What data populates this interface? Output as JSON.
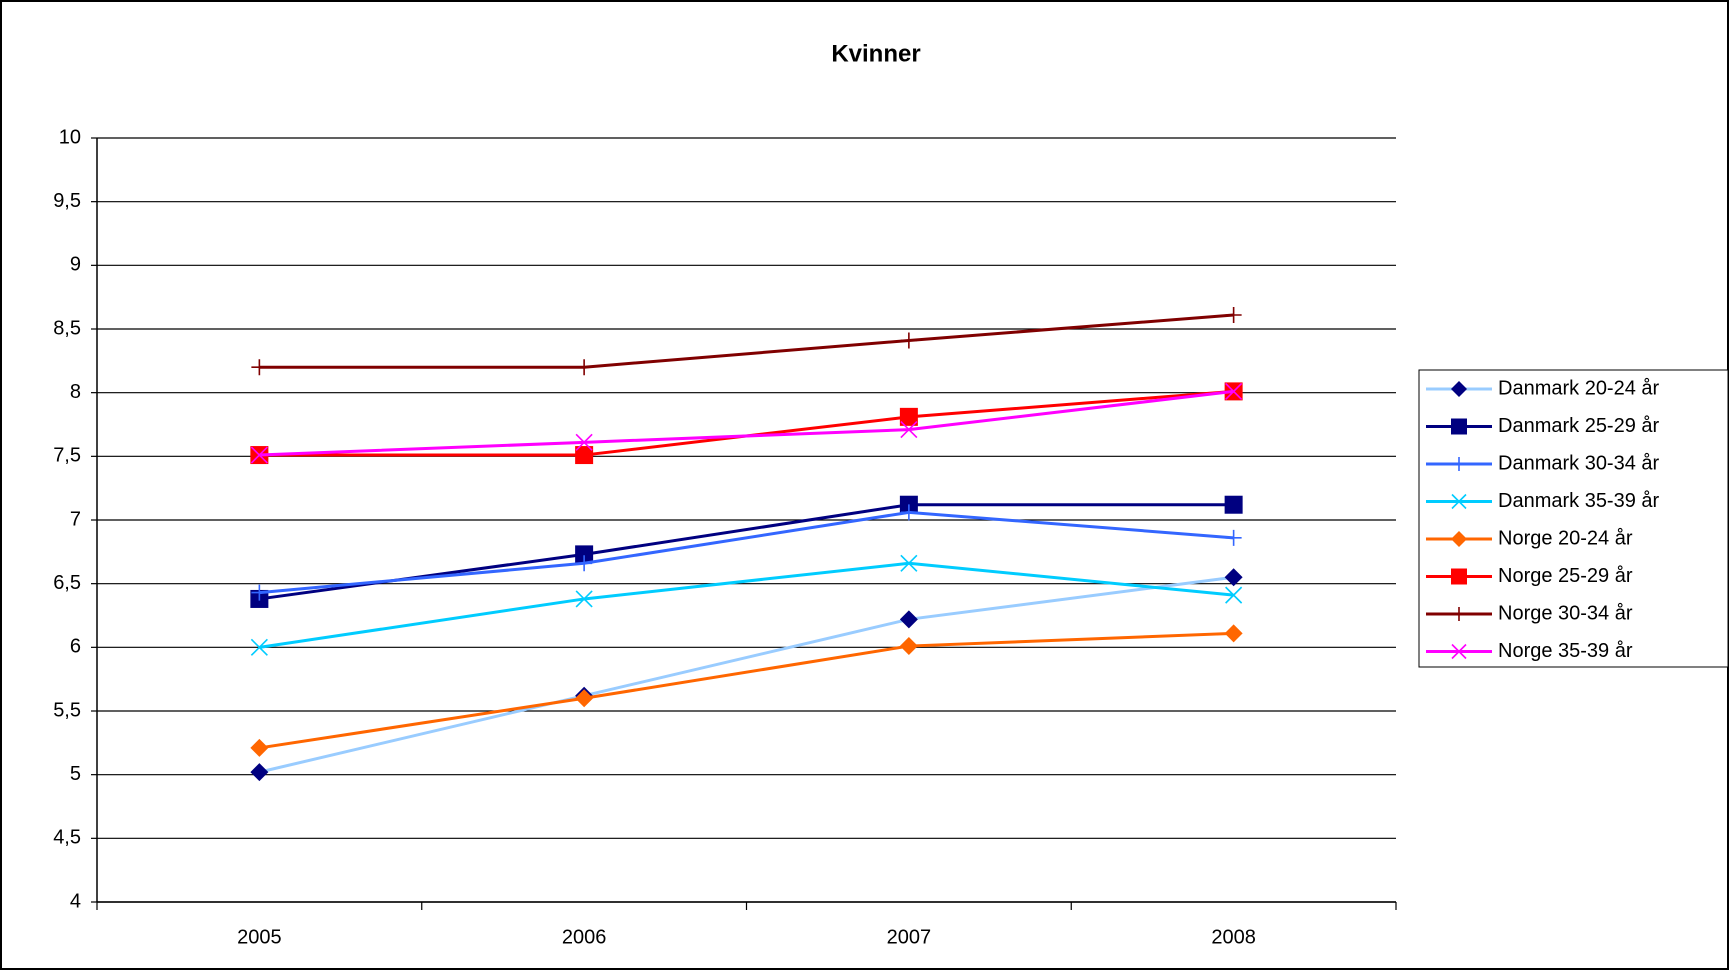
{
  "chart_data": {
    "type": "line",
    "title": "Kvinner",
    "categories": [
      "2005",
      "2006",
      "2007",
      "2008"
    ],
    "ylim": [
      4,
      10
    ],
    "yticks": [
      4,
      {
        "value": 4.5,
        "label": "4,5"
      },
      5,
      {
        "value": 5.5,
        "label": "5,5"
      },
      6,
      {
        "value": 6.5,
        "label": "6,5"
      },
      7,
      {
        "value": 7.5,
        "label": "7,5"
      },
      8,
      {
        "value": 8.5,
        "label": "8,5"
      },
      9,
      {
        "value": 9.5,
        "label": "9,5"
      },
      10
    ],
    "grid": true,
    "legend": "right",
    "series": [
      {
        "name": "Danmark 20-24 år",
        "color": "#99ccff",
        "marker": "diamond",
        "marker_color": "#000080",
        "values": [
          5.02,
          5.62,
          6.22,
          6.55
        ]
      },
      {
        "name": "Danmark 25-29 år",
        "color": "#000080",
        "marker": "square",
        "marker_color": "#000080",
        "values": [
          6.38,
          6.73,
          7.12,
          7.12
        ]
      },
      {
        "name": "Danmark 30-34 år",
        "color": "#3366ff",
        "marker": "plus",
        "marker_color": "#3366ff",
        "values": [
          6.43,
          6.66,
          7.06,
          6.86
        ]
      },
      {
        "name": "Danmark 35-39 år",
        "color": "#00ccff",
        "marker": "cross",
        "marker_color": "#00ccff",
        "values": [
          6.0,
          6.38,
          6.66,
          6.41
        ]
      },
      {
        "name": "Norge 20-24 år",
        "color": "#ff6600",
        "marker": "diamond",
        "marker_color": "#ff6600",
        "values": [
          5.21,
          5.6,
          6.01,
          6.11
        ]
      },
      {
        "name": "Norge 25-29 år",
        "color": "#ff0000",
        "marker": "square",
        "marker_color": "#ff0000",
        "values": [
          7.51,
          7.51,
          7.81,
          8.01
        ]
      },
      {
        "name": "Norge 30-34 år",
        "color": "#800000",
        "marker": "plus",
        "marker_color": "#800000",
        "values": [
          8.2,
          8.2,
          8.41,
          8.61
        ]
      },
      {
        "name": "Norge 35-39 år",
        "color": "#ff00ff",
        "marker": "cross",
        "marker_color": "#ff00ff",
        "values": [
          7.51,
          7.61,
          7.71,
          8.01
        ]
      }
    ]
  }
}
